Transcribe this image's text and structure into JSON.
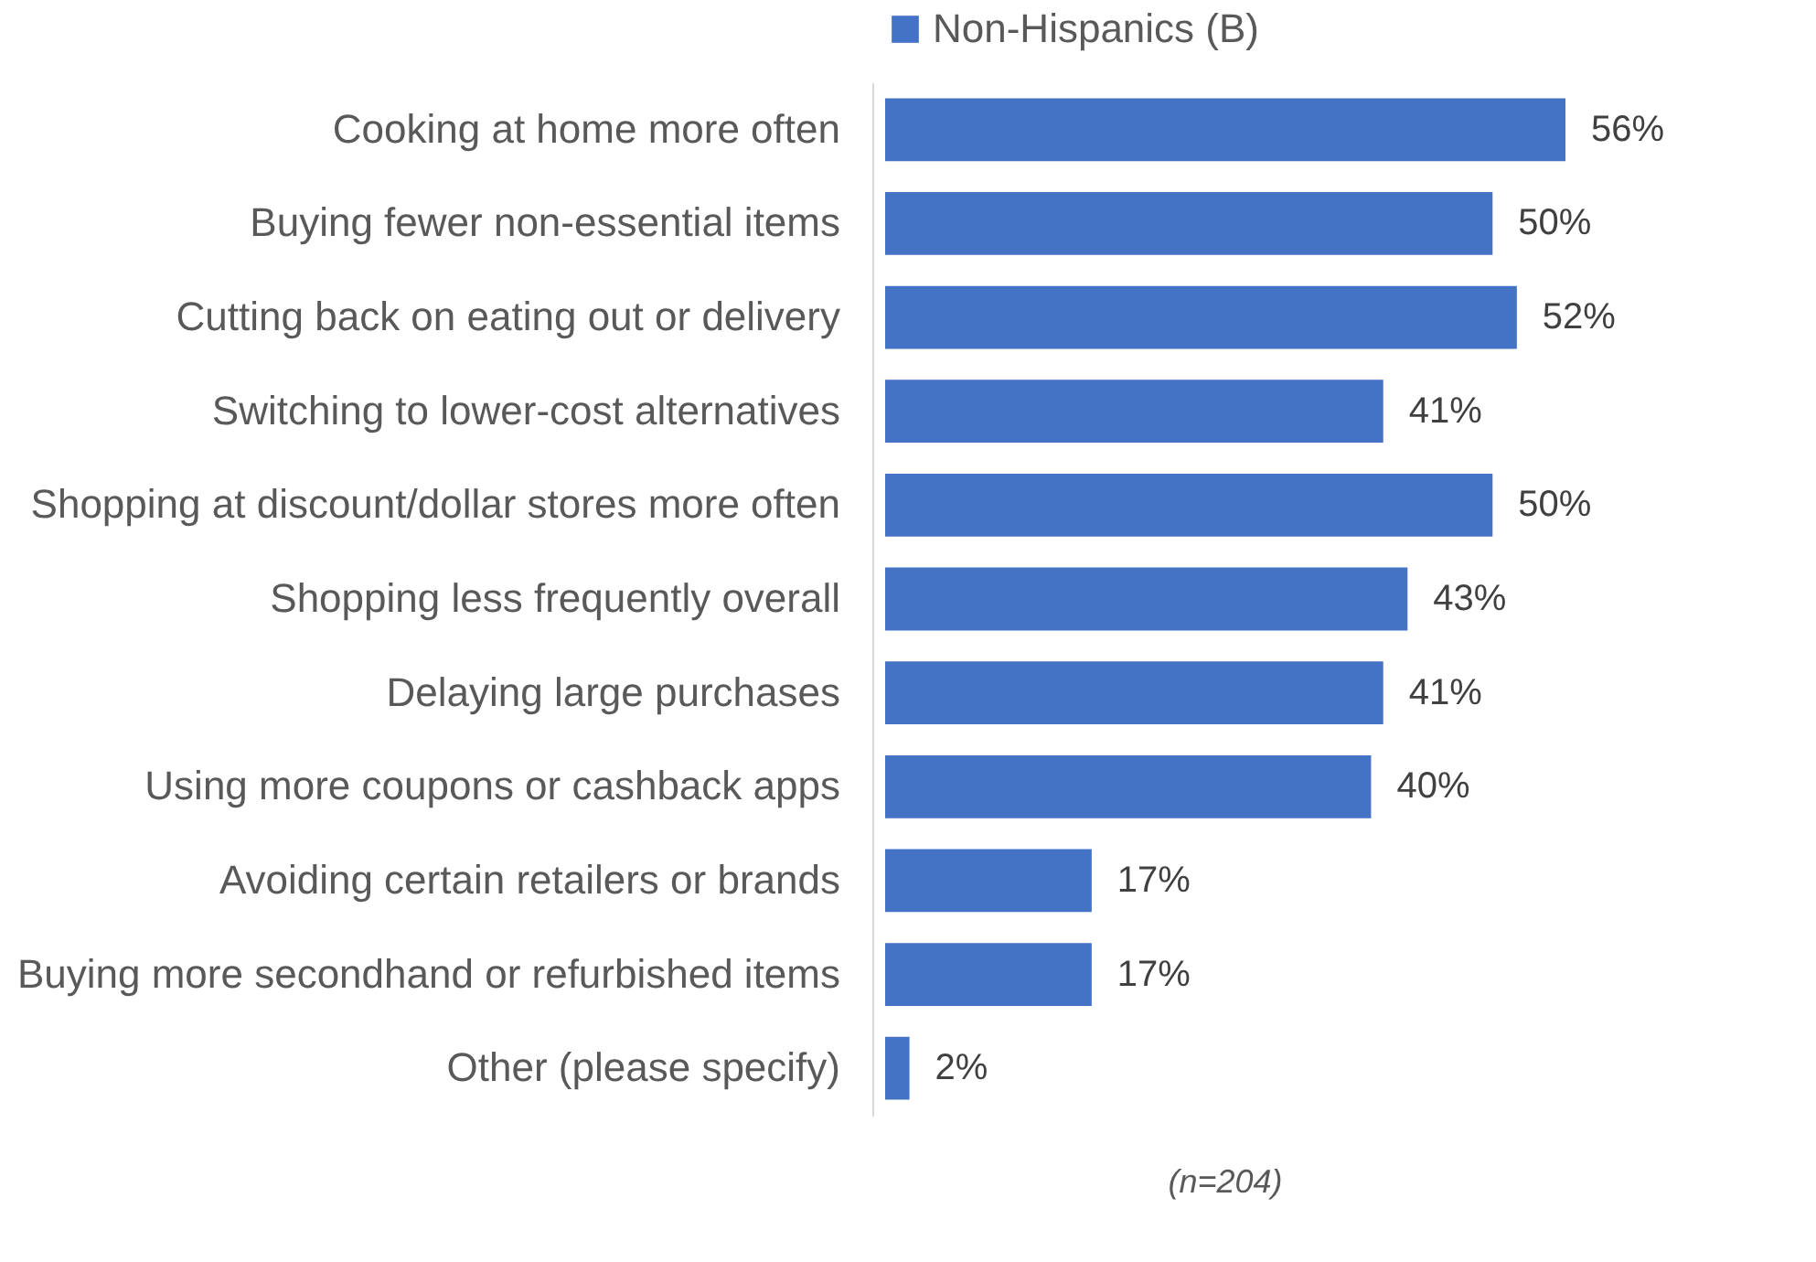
{
  "chart_data": {
    "type": "bar",
    "orientation": "horizontal",
    "categories": [
      "Cooking at home more often",
      "Buying fewer non-essential items",
      "Cutting back on eating out or delivery",
      "Switching to lower-cost alternatives",
      "Shopping at discount/dollar stores more often",
      "Shopping less frequently overall",
      "Delaying large purchases",
      "Using more coupons or cashback apps",
      "Avoiding certain retailers or brands",
      "Buying more secondhand or refurbished items",
      "Other (please specify)"
    ],
    "series": [
      {
        "name": "Non-Hispanics (B)",
        "color": "#4472c4",
        "values": [
          56,
          50,
          52,
          41,
          50,
          43,
          41,
          40,
          17,
          17,
          2
        ],
        "value_labels": [
          "56%",
          "50%",
          "52%",
          "41%",
          "50%",
          "43%",
          "41%",
          "40%",
          "17%",
          "17%",
          "2%"
        ]
      }
    ],
    "legend": "top",
    "annotations": [
      "(n=204)"
    ]
  }
}
